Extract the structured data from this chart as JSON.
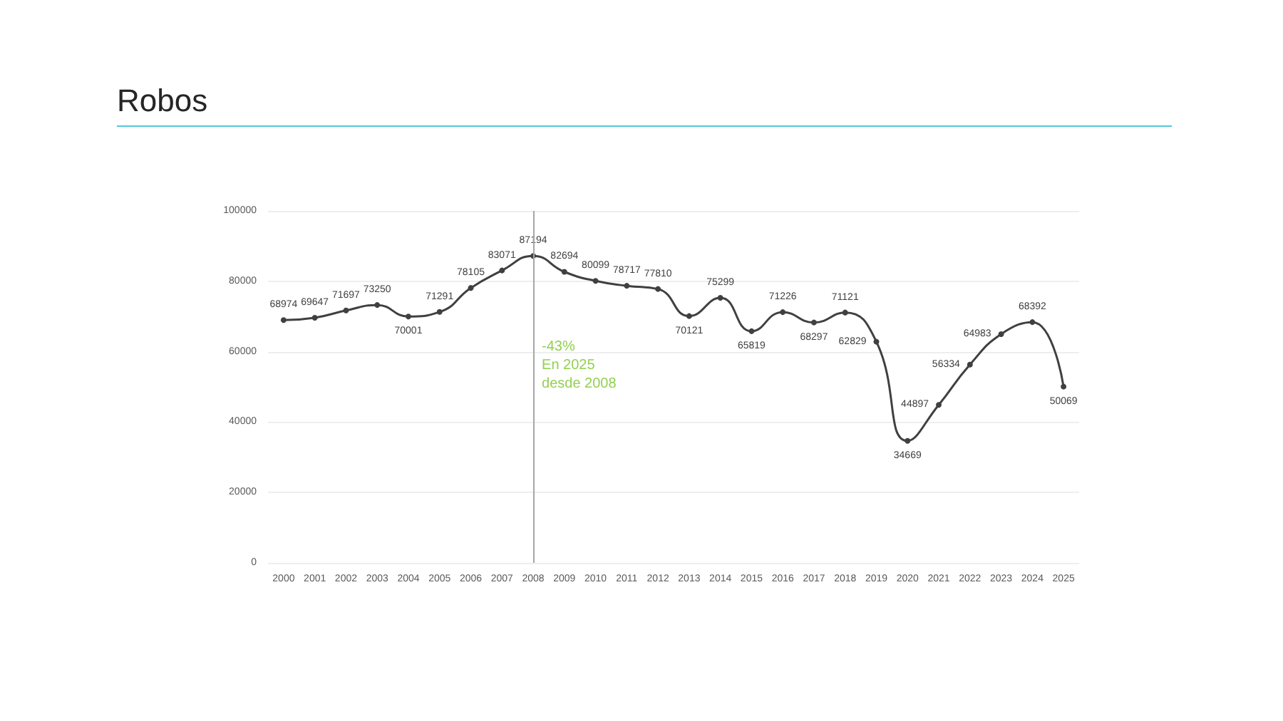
{
  "chart_data": {
    "type": "line",
    "title": "Robos",
    "categories": [
      "2000",
      "2001",
      "2002",
      "2003",
      "2004",
      "2005",
      "2006",
      "2007",
      "2008",
      "2009",
      "2010",
      "2011",
      "2012",
      "2013",
      "2014",
      "2015",
      "2016",
      "2017",
      "2018",
      "2019",
      "2020",
      "2021",
      "2022",
      "2023",
      "2024",
      "2025"
    ],
    "series": [
      {
        "color": "#404040",
        "values": [
          68974,
          69647,
          71697,
          73250,
          70001,
          71291,
          78105,
          83071,
          87194,
          82694,
          80099,
          78717,
          77810,
          70121,
          75299,
          65819,
          71226,
          68297,
          71121,
          62829,
          34669,
          44897,
          56334,
          64983,
          68392,
          50069
        ]
      }
    ],
    "ylim": [
      0,
      100000
    ],
    "yticks": [
      0,
      20000,
      40000,
      60000,
      80000,
      100000
    ],
    "grid": "y",
    "marker": "circle",
    "line_style": "solid",
    "data_labels": true,
    "ref_lines": [
      {
        "axis": "x",
        "value": "2008",
        "color": "#a6a6a6"
      }
    ],
    "annotations": [
      {
        "text": "-43%\nEn 2025\ndesde 2008",
        "x": "2008",
        "y": 60000
      }
    ]
  }
}
